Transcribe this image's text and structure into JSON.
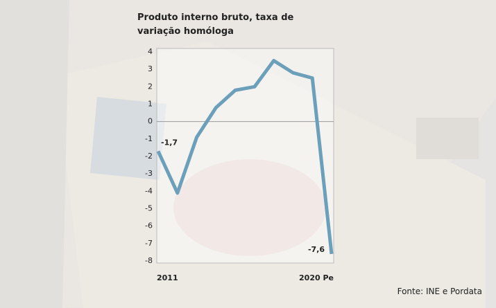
{
  "chart_data": {
    "type": "line",
    "title": "Produto interno bruto, taxa de variação homóloga",
    "source": "Fonte: INE e Pordata",
    "categories": [
      "2011",
      null,
      null,
      null,
      null,
      null,
      null,
      null,
      null,
      "2020 Pe"
    ],
    "series": [
      {
        "color": "#6b9fba",
        "values": [
          -1.7,
          -4.1,
          -0.9,
          0.8,
          1.8,
          2.0,
          3.5,
          2.8,
          2.5,
          -7.6
        ],
        "value_labels": [
          "-1,7",
          null,
          null,
          null,
          null,
          null,
          null,
          null,
          null,
          "-7,6"
        ]
      }
    ],
    "ylim": [
      -8,
      4
    ],
    "yticks": [
      -8,
      -7,
      -6,
      -5,
      -4,
      -3,
      -2,
      -1,
      0,
      1,
      2,
      3,
      4
    ]
  }
}
